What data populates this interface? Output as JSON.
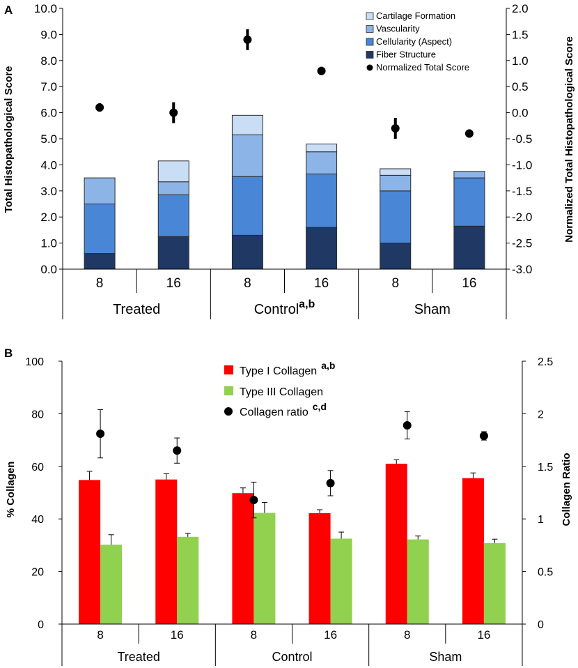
{
  "chart_data": [
    {
      "panel_label": "A",
      "type": "bar",
      "stacked": true,
      "subcategories": [
        "8",
        "16",
        "8",
        "16",
        "8",
        "16"
      ],
      "groups": [
        {
          "label": "Treated",
          "annotation": ""
        },
        {
          "label": "Control",
          "annotation": "a,b"
        },
        {
          "label": "Sham",
          "annotation": ""
        }
      ],
      "series": [
        {
          "name": "Fiber Structure",
          "color": "#1f3864",
          "values": [
            0.6,
            1.25,
            1.3,
            1.6,
            1.0,
            1.65
          ]
        },
        {
          "name": "Cellularity (Aspect)",
          "color": "#4a86d6",
          "values": [
            1.9,
            1.6,
            2.25,
            2.05,
            2.0,
            1.85
          ]
        },
        {
          "name": "Vascularity",
          "color": "#8db4e6",
          "values": [
            1.0,
            0.5,
            1.6,
            0.85,
            0.6,
            0.25
          ]
        },
        {
          "name": "Cartilage Formation",
          "color": "#c9ddf5",
          "values": [
            0.0,
            0.8,
            0.75,
            0.3,
            0.25,
            0.0
          ]
        }
      ],
      "secondary_series": {
        "name": "Normalized Total Score",
        "color": "#000000",
        "values": [
          0.1,
          0.0,
          1.4,
          0.8,
          -0.3,
          -0.4
        ],
        "errors": [
          0.08,
          0.2,
          0.2,
          0.08,
          0.2,
          0.08
        ]
      },
      "legend_order": [
        "Cartilage Formation",
        "Vascularity",
        "Cellularity (Aspect)",
        "Fiber Structure",
        "Normalized Total Score"
      ],
      "ylabel": "Total Histopathological Score",
      "ylim": [
        0,
        10
      ],
      "yticks": [
        "0.0",
        "1.0",
        "2.0",
        "3.0",
        "4.0",
        "5.0",
        "6.0",
        "7.0",
        "8.0",
        "9.0",
        "10.0"
      ],
      "y2label": "Normalized Total Histopathological Score",
      "y2lim": [
        -3,
        2
      ],
      "y2ticks": [
        "-3.0",
        "-2.5",
        "-2.0",
        "-1.5",
        "-1.0",
        "-0.5",
        "0.0",
        "0.5",
        "1.0",
        "1.5",
        "2.0"
      ],
      "legend_position": "top-right"
    },
    {
      "panel_label": "B",
      "type": "bar",
      "stacked": false,
      "subcategories": [
        "8",
        "16",
        "8",
        "16",
        "8",
        "16"
      ],
      "groups": [
        {
          "label": "Treated"
        },
        {
          "label": "Control"
        },
        {
          "label": "Sham"
        }
      ],
      "series": [
        {
          "name": "Type I Collagen",
          "annotation": "a,b",
          "color": "#ff0000",
          "values": [
            54.8,
            55.0,
            49.8,
            42.2,
            61.0,
            55.5
          ],
          "errors": [
            3.3,
            2.2,
            2.0,
            1.3,
            1.5,
            2.0
          ]
        },
        {
          "name": "Type III Collagen",
          "annotation": "",
          "color": "#92d050",
          "values": [
            30.2,
            33.2,
            42.3,
            32.5,
            32.2,
            30.8
          ],
          "errors": [
            3.8,
            1.3,
            4.0,
            2.5,
            1.3,
            1.5
          ]
        }
      ],
      "secondary_series": {
        "name": "Collagen ratio",
        "annotation": "c,d",
        "color": "#000000",
        "values": [
          1.81,
          1.65,
          1.18,
          1.34,
          1.89,
          1.79
        ],
        "errors": [
          0.23,
          0.12,
          0.17,
          0.12,
          0.13,
          0.04
        ]
      },
      "ylabel": "% Collagen",
      "ylim": [
        0,
        100
      ],
      "yticks": [
        "0",
        "20",
        "40",
        "60",
        "80",
        "100"
      ],
      "y2label": "Collagen Ratio",
      "y2lim": [
        0,
        2.5
      ],
      "y2ticks": [
        "0",
        "0.5",
        "1",
        "1.5",
        "2",
        "2.5"
      ],
      "legend_position": "top-center"
    }
  ]
}
